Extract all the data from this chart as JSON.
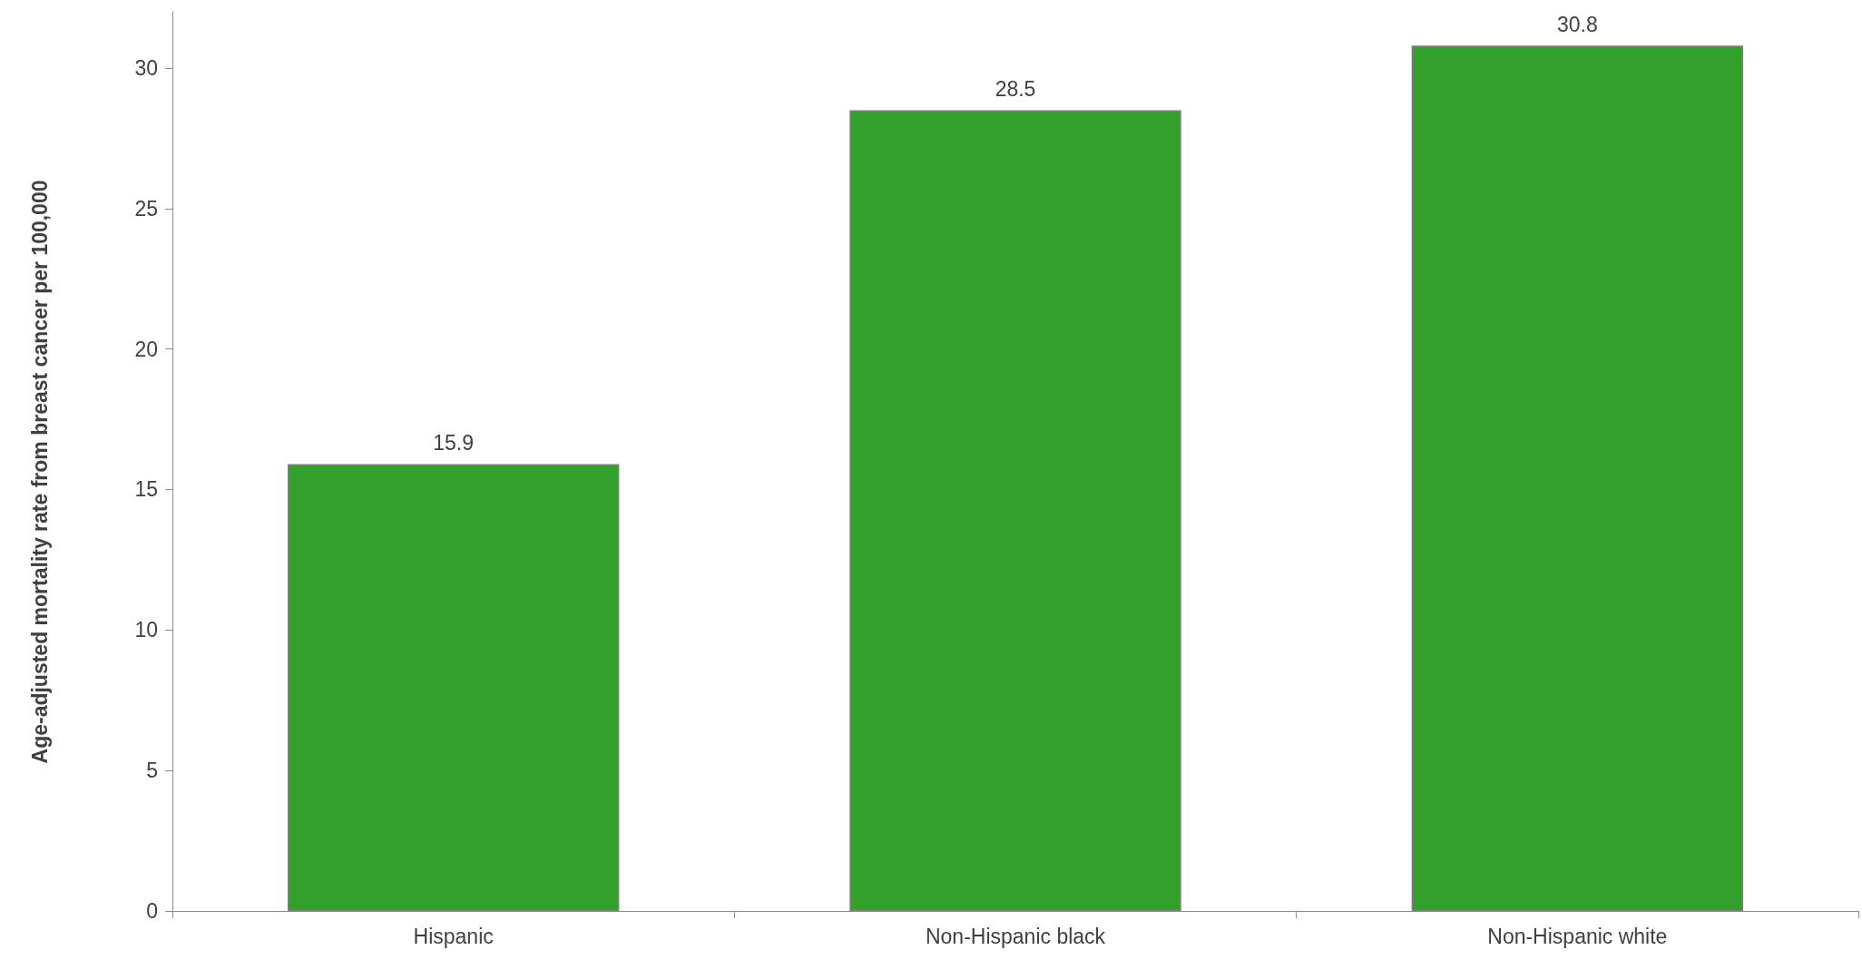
{
  "chart_data": {
    "type": "bar",
    "ylabel": "Age-adjusted mortality rate from breast cancer per 100,000",
    "categories": [
      "Hispanic",
      "Non-Hispanic black",
      "Non-Hispanic white"
    ],
    "values": [
      15.9,
      28.5,
      30.8
    ],
    "color": "#33a02c",
    "data_labels": true,
    "ylim": [
      0,
      32
    ],
    "yticks": [
      0,
      5,
      10,
      15,
      20,
      25,
      30
    ],
    "grid": false
  }
}
